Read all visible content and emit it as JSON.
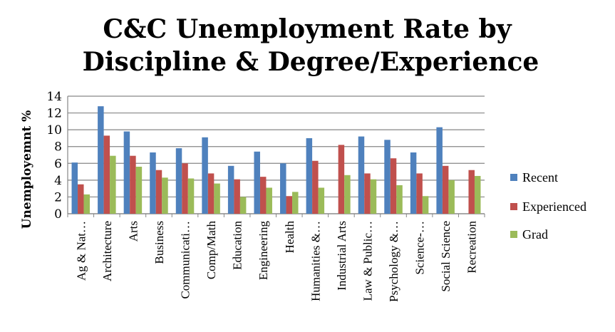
{
  "chart_data": {
    "type": "bar",
    "title_lines": [
      "C&C Unemployment Rate by",
      "Discipline & Degree/Experience"
    ],
    "ylabel": "Unemployemnt %",
    "xlabel": "",
    "ylim": [
      0,
      14
    ],
    "yticks": [
      "0",
      "2",
      "4",
      "6",
      "8",
      "10",
      "12",
      "14"
    ],
    "grid": true,
    "legend_position": "right",
    "categories": [
      "Ag & Nat…",
      "Architecture",
      "Arts",
      "Business",
      "Communicati…",
      "Comp/Math",
      "Education",
      "Engineering",
      "Health",
      "Humanities &…",
      "Industrial Arts",
      "Law & Public…",
      "Psychology &…",
      "Science-…",
      "Social Science",
      "Recreation"
    ],
    "series": [
      {
        "name": "Recent",
        "color": "#4F81BD",
        "values": [
          6.1,
          12.8,
          9.8,
          7.3,
          7.8,
          9.1,
          5.7,
          7.4,
          6.0,
          9.0,
          null,
          9.2,
          8.8,
          7.3,
          10.3,
          null
        ]
      },
      {
        "name": "Experienced",
        "color": "#C0504D",
        "values": [
          3.5,
          9.3,
          6.9,
          5.2,
          6.0,
          4.8,
          4.1,
          4.4,
          2.1,
          6.3,
          8.2,
          4.8,
          6.6,
          4.8,
          5.7,
          5.2
        ]
      },
      {
        "name": "Grad",
        "color": "#9BBB59",
        "values": [
          2.3,
          6.9,
          5.6,
          4.3,
          4.2,
          3.6,
          2.0,
          3.1,
          2.6,
          3.1,
          4.6,
          4.1,
          3.4,
          2.1,
          4.0,
          4.5
        ]
      }
    ]
  }
}
